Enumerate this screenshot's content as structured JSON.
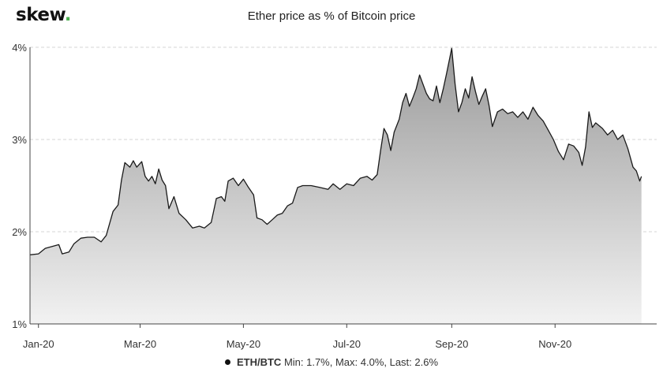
{
  "header": {
    "logo": "skew",
    "logo_dot": ".",
    "title": "Ether price as % of Bitcoin price"
  },
  "colors": {
    "line": "#1a1a1a",
    "area_top": "#9a9a9a",
    "area_bottom": "#f2f2f2",
    "grid": "#d6d6d6",
    "axis": "#444444"
  },
  "chart_data": {
    "type": "area",
    "title": "Ether price as % of Bitcoin price",
    "xlabel": "",
    "ylabel": "",
    "ylim": [
      1,
      4
    ],
    "yticks": [
      1,
      2,
      3,
      4
    ],
    "ytick_labels": [
      "1%",
      "2%",
      "3%",
      "4%"
    ],
    "xlim": [
      "2020-01-01",
      "2020-12-31"
    ],
    "xticks": [
      "2020-01-01",
      "2020-03-01",
      "2020-05-01",
      "2020-07-01",
      "2020-09-01",
      "2020-11-01"
    ],
    "xtick_labels": [
      "Jan-20",
      "Mar-20",
      "May-20",
      "Jul-20",
      "Sep-20",
      "Nov-20"
    ],
    "grid": "horizontal dashed",
    "legend_placement": "bottom",
    "series": [
      {
        "name": "ETH/BTC",
        "stats_label": "Min: 1.7%, Max: 4.0%, Last: 2.6%",
        "points": [
          [
            "2019-12-27",
            1.75
          ],
          [
            "2020-01-01",
            1.76
          ],
          [
            "2020-01-05",
            1.82
          ],
          [
            "2020-01-09",
            1.84
          ],
          [
            "2020-01-13",
            1.86
          ],
          [
            "2020-01-15",
            1.76
          ],
          [
            "2020-01-19",
            1.78
          ],
          [
            "2020-01-22",
            1.87
          ],
          [
            "2020-01-26",
            1.93
          ],
          [
            "2020-01-30",
            1.94
          ],
          [
            "2020-02-03",
            1.94
          ],
          [
            "2020-02-07",
            1.89
          ],
          [
            "2020-02-10",
            1.96
          ],
          [
            "2020-02-14",
            2.22
          ],
          [
            "2020-02-17",
            2.29
          ],
          [
            "2020-02-19",
            2.56
          ],
          [
            "2020-02-21",
            2.75
          ],
          [
            "2020-02-24",
            2.7
          ],
          [
            "2020-02-26",
            2.77
          ],
          [
            "2020-02-28",
            2.7
          ],
          [
            "2020-03-02",
            2.76
          ],
          [
            "2020-03-04",
            2.6
          ],
          [
            "2020-03-06",
            2.55
          ],
          [
            "2020-03-08",
            2.6
          ],
          [
            "2020-03-10",
            2.52
          ],
          [
            "2020-03-12",
            2.68
          ],
          [
            "2020-03-14",
            2.56
          ],
          [
            "2020-03-16",
            2.5
          ],
          [
            "2020-03-18",
            2.25
          ],
          [
            "2020-03-21",
            2.38
          ],
          [
            "2020-03-24",
            2.2
          ],
          [
            "2020-03-28",
            2.13
          ],
          [
            "2020-04-01",
            2.04
          ],
          [
            "2020-04-05",
            2.06
          ],
          [
            "2020-04-08",
            2.04
          ],
          [
            "2020-04-12",
            2.1
          ],
          [
            "2020-04-15",
            2.36
          ],
          [
            "2020-04-18",
            2.38
          ],
          [
            "2020-04-20",
            2.33
          ],
          [
            "2020-04-22",
            2.55
          ],
          [
            "2020-04-25",
            2.58
          ],
          [
            "2020-04-28",
            2.5
          ],
          [
            "2020-05-01",
            2.57
          ],
          [
            "2020-05-04",
            2.48
          ],
          [
            "2020-05-07",
            2.4
          ],
          [
            "2020-05-09",
            2.15
          ],
          [
            "2020-05-12",
            2.13
          ],
          [
            "2020-05-15",
            2.08
          ],
          [
            "2020-05-18",
            2.13
          ],
          [
            "2020-05-21",
            2.18
          ],
          [
            "2020-05-24",
            2.2
          ],
          [
            "2020-05-27",
            2.28
          ],
          [
            "2020-05-30",
            2.31
          ],
          [
            "2020-06-02",
            2.48
          ],
          [
            "2020-06-05",
            2.5
          ],
          [
            "2020-06-10",
            2.5
          ],
          [
            "2020-06-15",
            2.48
          ],
          [
            "2020-06-20",
            2.46
          ],
          [
            "2020-06-23",
            2.52
          ],
          [
            "2020-06-27",
            2.46
          ],
          [
            "2020-07-01",
            2.52
          ],
          [
            "2020-07-05",
            2.5
          ],
          [
            "2020-07-09",
            2.58
          ],
          [
            "2020-07-13",
            2.6
          ],
          [
            "2020-07-16",
            2.56
          ],
          [
            "2020-07-19",
            2.62
          ],
          [
            "2020-07-21",
            2.88
          ],
          [
            "2020-07-23",
            3.12
          ],
          [
            "2020-07-25",
            3.05
          ],
          [
            "2020-07-27",
            2.88
          ],
          [
            "2020-07-29",
            3.08
          ],
          [
            "2020-08-01",
            3.22
          ],
          [
            "2020-08-03",
            3.4
          ],
          [
            "2020-08-05",
            3.5
          ],
          [
            "2020-08-07",
            3.36
          ],
          [
            "2020-08-09",
            3.45
          ],
          [
            "2020-08-11",
            3.55
          ],
          [
            "2020-08-13",
            3.7
          ],
          [
            "2020-08-15",
            3.6
          ],
          [
            "2020-08-17",
            3.5
          ],
          [
            "2020-08-19",
            3.44
          ],
          [
            "2020-08-21",
            3.42
          ],
          [
            "2020-08-23",
            3.58
          ],
          [
            "2020-08-25",
            3.4
          ],
          [
            "2020-08-27",
            3.55
          ],
          [
            "2020-08-29",
            3.72
          ],
          [
            "2020-08-31",
            3.9
          ],
          [
            "2020-09-01",
            3.99
          ],
          [
            "2020-09-03",
            3.6
          ],
          [
            "2020-09-05",
            3.3
          ],
          [
            "2020-09-07",
            3.4
          ],
          [
            "2020-09-09",
            3.55
          ],
          [
            "2020-09-11",
            3.45
          ],
          [
            "2020-09-13",
            3.68
          ],
          [
            "2020-09-15",
            3.52
          ],
          [
            "2020-09-17",
            3.38
          ],
          [
            "2020-09-19",
            3.47
          ],
          [
            "2020-09-21",
            3.55
          ],
          [
            "2020-09-23",
            3.37
          ],
          [
            "2020-09-25",
            3.14
          ],
          [
            "2020-09-28",
            3.3
          ],
          [
            "2020-10-01",
            3.33
          ],
          [
            "2020-10-04",
            3.28
          ],
          [
            "2020-10-07",
            3.3
          ],
          [
            "2020-10-10",
            3.24
          ],
          [
            "2020-10-13",
            3.3
          ],
          [
            "2020-10-16",
            3.22
          ],
          [
            "2020-10-19",
            3.35
          ],
          [
            "2020-10-22",
            3.26
          ],
          [
            "2020-10-25",
            3.2
          ],
          [
            "2020-10-28",
            3.1
          ],
          [
            "2020-10-31",
            3.0
          ],
          [
            "2020-11-03",
            2.87
          ],
          [
            "2020-11-06",
            2.78
          ],
          [
            "2020-11-09",
            2.95
          ],
          [
            "2020-11-12",
            2.93
          ],
          [
            "2020-11-15",
            2.86
          ],
          [
            "2020-11-17",
            2.72
          ],
          [
            "2020-11-19",
            2.92
          ],
          [
            "2020-11-21",
            3.3
          ],
          [
            "2020-11-23",
            3.13
          ],
          [
            "2020-11-25",
            3.18
          ],
          [
            "2020-11-27",
            3.15
          ],
          [
            "2020-11-29",
            3.12
          ],
          [
            "2020-12-02",
            3.05
          ],
          [
            "2020-12-05",
            3.1
          ],
          [
            "2020-12-08",
            3.0
          ],
          [
            "2020-12-11",
            3.05
          ],
          [
            "2020-12-14",
            2.9
          ],
          [
            "2020-12-17",
            2.7
          ],
          [
            "2020-12-19",
            2.66
          ],
          [
            "2020-12-21",
            2.55
          ],
          [
            "2020-12-22",
            2.6
          ]
        ]
      }
    ]
  }
}
